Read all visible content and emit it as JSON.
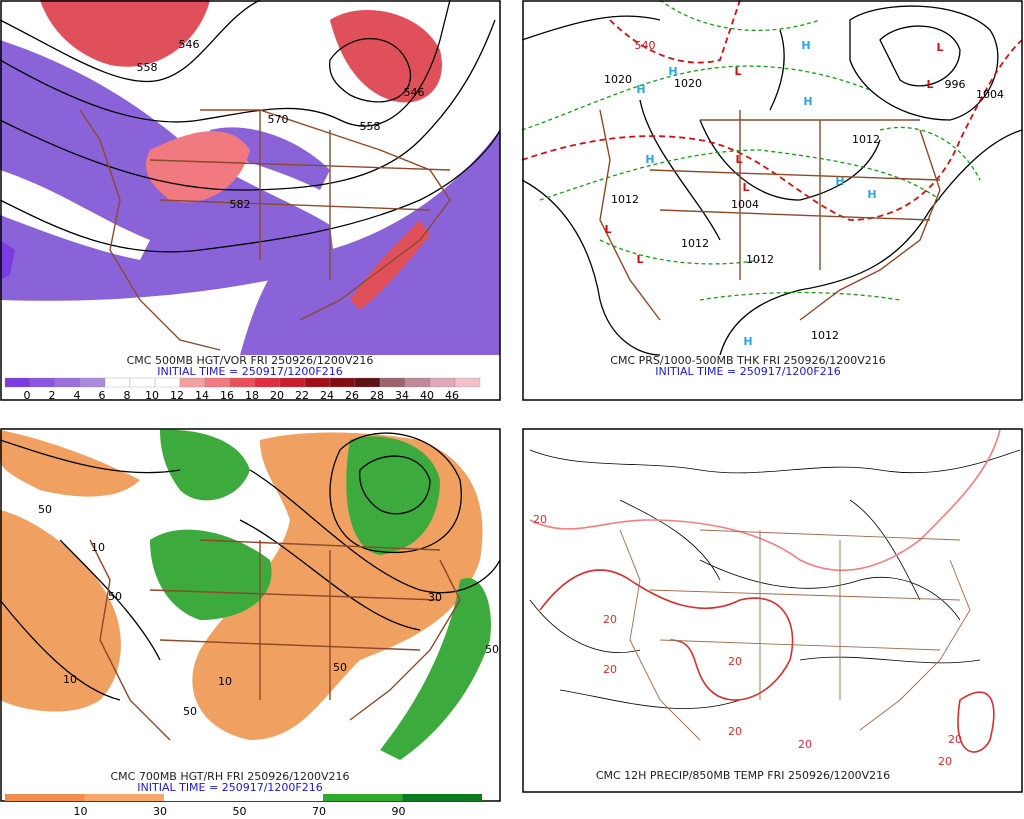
{
  "panels": [
    {
      "caption": "CMC 500MB HGT/VOR FRI 250926/1200V216",
      "initial_time": "INITIAL TIME = 250917/1200F216",
      "colorbar": [
        0,
        2,
        4,
        6,
        8,
        10,
        12,
        14,
        16,
        18,
        20,
        22,
        24,
        26,
        28,
        34,
        40,
        46
      ],
      "labels": [
        "558",
        "546",
        "570",
        "582",
        "558",
        "546"
      ]
    },
    {
      "caption": "CMC PRS/1000-500MB THK FRI 250926/1200V216",
      "initial_time": "INITIAL TIME = 250917/1200F216",
      "labels": [
        "H",
        "H",
        "H",
        "H",
        "H",
        "H",
        "H",
        "H",
        "L",
        "L",
        "L",
        "L",
        "L",
        "L",
        "L",
        "1020",
        "1020",
        "1012",
        "1004",
        "1012",
        "1012",
        "1012",
        "996",
        "1004",
        "540",
        "1012"
      ]
    },
    {
      "caption": "CMC 700MB HGT/RH FRI 250926/1200V216",
      "initial_time": "INITIAL TIME = 250917/1200F216",
      "colorbar": [
        10,
        30,
        50,
        70,
        90
      ],
      "labels": [
        "50",
        "10",
        "50",
        "10",
        "50",
        "10",
        "50",
        "30",
        "50"
      ]
    },
    {
      "caption": "CMC 12H PRECIP/850MB TEMP FRI 250926/1200V216",
      "labels": [
        "20",
        "20",
        "20",
        "20",
        "20",
        "20",
        "20",
        "20"
      ]
    }
  ]
}
